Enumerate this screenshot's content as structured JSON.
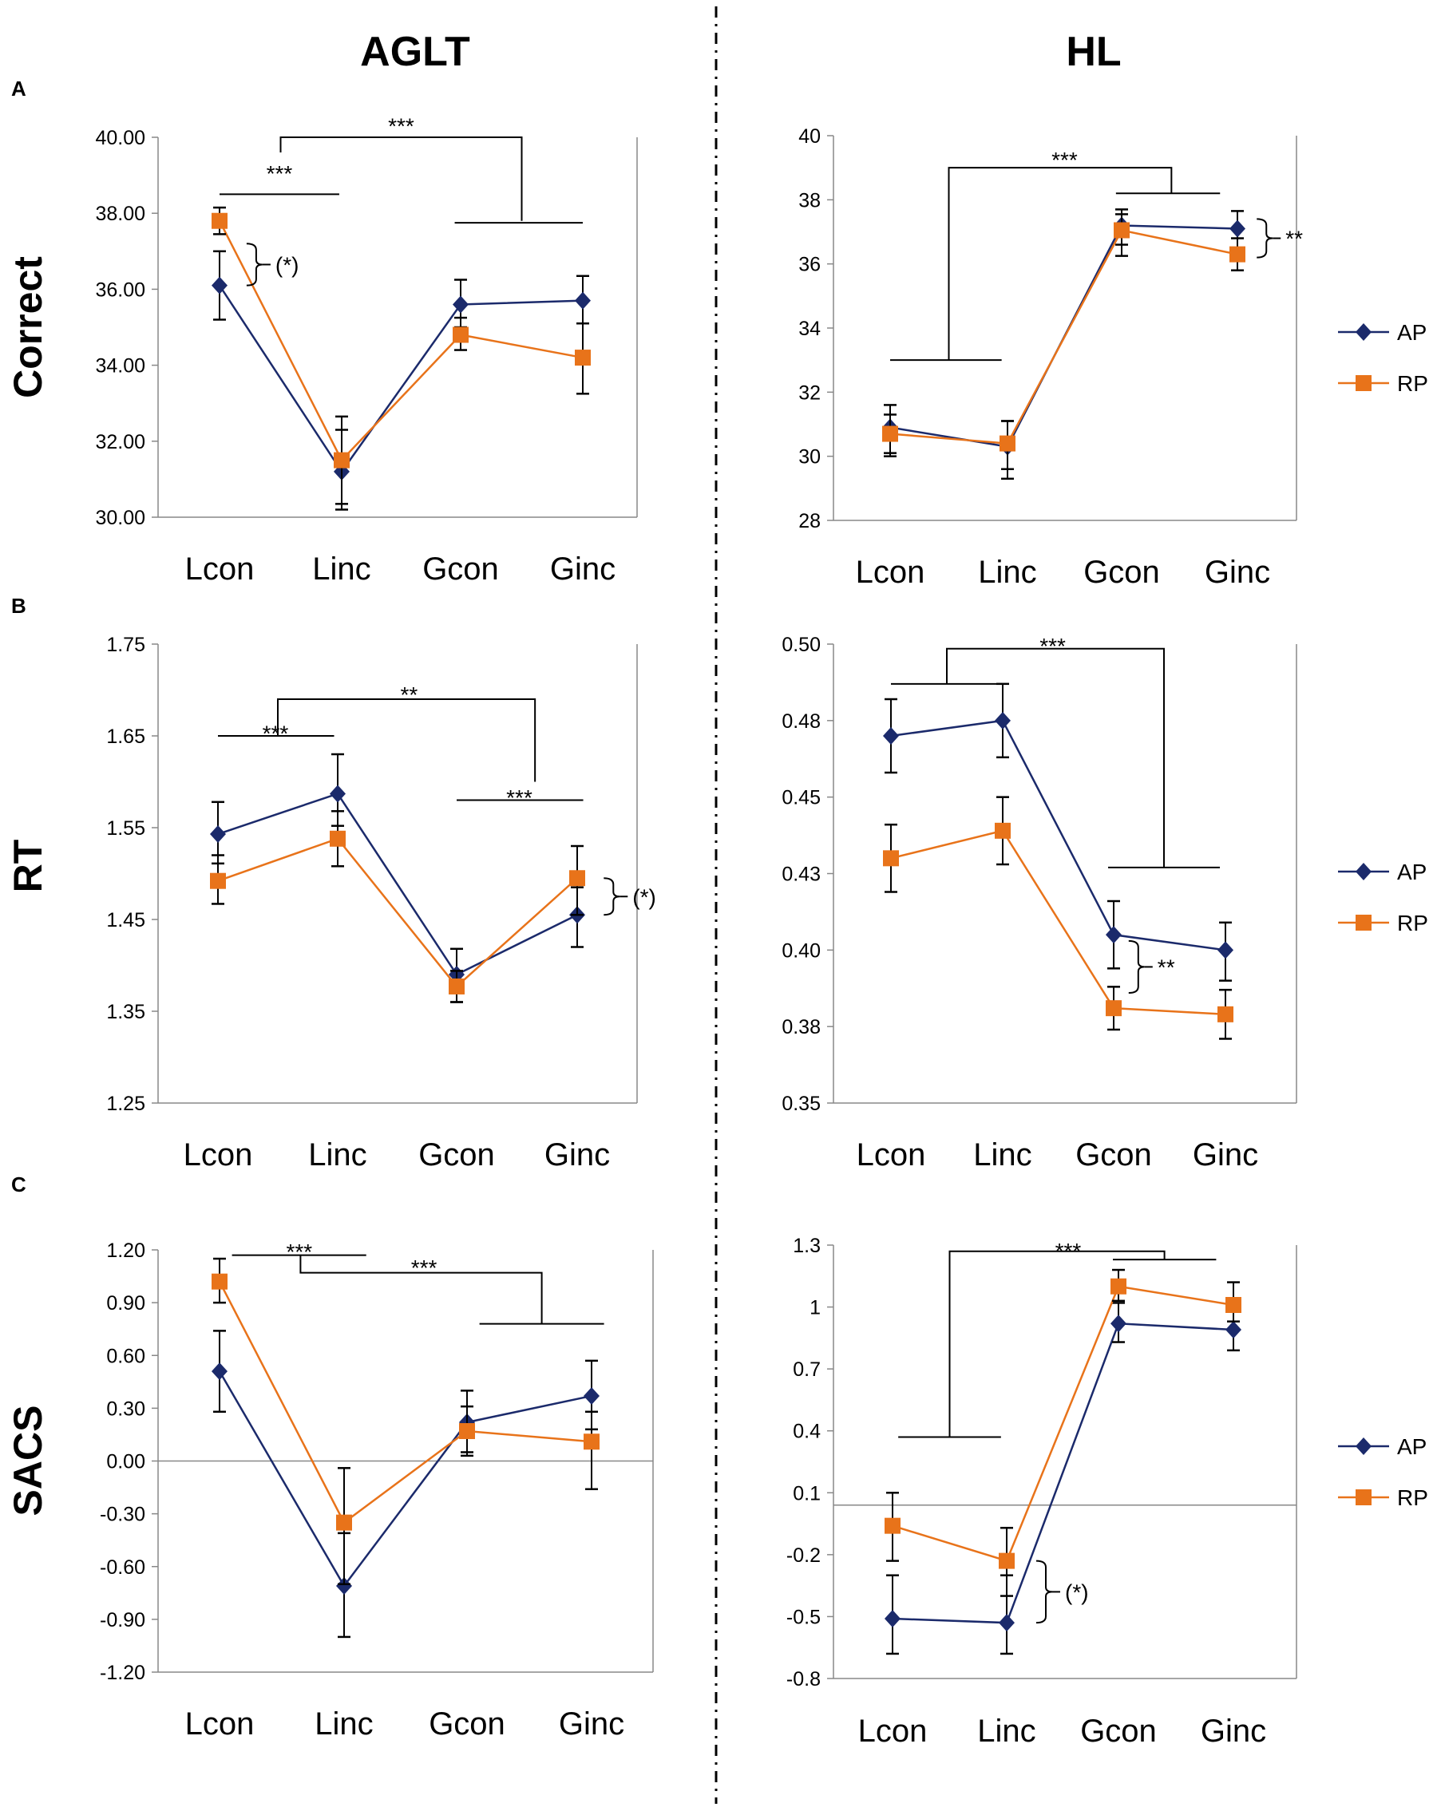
{
  "figure": {
    "column_titles": [
      "AGLT",
      "HL"
    ],
    "row_labels": [
      "Correct",
      "RT",
      "SACS"
    ],
    "panel_letters": [
      "A",
      "B",
      "C"
    ]
  },
  "colors": {
    "ap": "#1b2a6b",
    "rp": "#e8731a",
    "axis": "#888888",
    "annot": "#000000",
    "divider": "#000000"
  },
  "legend": {
    "entries": [
      "AP",
      "RP"
    ]
  },
  "chart_data": [
    {
      "id": "aglt-correct",
      "type": "line",
      "title": "AGLT",
      "ylabel": "Correct",
      "categories": [
        "Lcon",
        "Linc",
        "Gcon",
        "Ginc"
      ],
      "ylim": [
        30,
        40
      ],
      "yticks": [
        30,
        32,
        34,
        36,
        38,
        40
      ],
      "ytick_labels": [
        "30.00",
        "32.00",
        "34.00",
        "36.00",
        "38.00",
        "40.00"
      ],
      "zero_line": false,
      "legend": false,
      "series": [
        {
          "name": "AP",
          "values": [
            36.1,
            31.2,
            35.6,
            35.7
          ],
          "err_hi": [
            0.9,
            1.45,
            0.65,
            0.65
          ],
          "err_lo": [
            0.9,
            1.0,
            0.6,
            0.6
          ]
        },
        {
          "name": "RP",
          "values": [
            37.8,
            31.5,
            34.8,
            34.2
          ],
          "err_hi": [
            0.35,
            0.8,
            0.45,
            0.9
          ],
          "err_lo": [
            0.35,
            1.15,
            0.4,
            0.95
          ]
        }
      ],
      "annotations": [
        {
          "kind": "hline",
          "x1": 0,
          "x2": 0.98,
          "y": 38.5
        },
        {
          "kind": "text",
          "text": "***",
          "x": 0.49,
          "y": 39.1
        },
        {
          "kind": "path",
          "pts": [
            [
              0.5,
              39.6
            ],
            [
              0.5,
              40.0
            ],
            [
              2.5,
              40.0
            ],
            [
              2.5,
              37.8
            ]
          ]
        },
        {
          "kind": "hline",
          "x1": 1.95,
          "x2": 3.0,
          "y": 37.75
        },
        {
          "kind": "text",
          "text": "***",
          "x": 1.5,
          "y": 40.35
        },
        {
          "kind": "brace",
          "x": 0.3,
          "y1": 36.1,
          "y2": 37.2,
          "label": "(*)"
        }
      ]
    },
    {
      "id": "hl-correct",
      "type": "line",
      "title": "HL",
      "ylabel": "Correct",
      "categories": [
        "Lcon",
        "Linc",
        "Gcon",
        "Ginc"
      ],
      "ylim": [
        28,
        40
      ],
      "yticks": [
        28,
        30,
        32,
        34,
        36,
        38,
        40
      ],
      "ytick_labels": [
        "28",
        "30",
        "32",
        "34",
        "36",
        "38",
        "40"
      ],
      "zero_line": false,
      "legend": true,
      "series": [
        {
          "name": "AP",
          "values": [
            30.9,
            30.3,
            37.2,
            37.1
          ],
          "err_hi": [
            0.7,
            0.8,
            0.5,
            0.55
          ],
          "err_lo": [
            0.9,
            1.0,
            0.6,
            0.6
          ]
        },
        {
          "name": "RP",
          "values": [
            30.7,
            30.4,
            37.05,
            36.3
          ],
          "err_hi": [
            0.6,
            0.7,
            0.5,
            0.5
          ],
          "err_lo": [
            0.6,
            0.8,
            0.8,
            0.5
          ]
        }
      ],
      "annotations": [
        {
          "kind": "hline",
          "x1": 0,
          "x2": 0.95,
          "y": 33.0
        },
        {
          "kind": "path",
          "pts": [
            [
              0.5,
              33.0
            ],
            [
              0.5,
              39.0
            ],
            [
              2.43,
              39.0
            ],
            [
              2.43,
              38.2
            ]
          ]
        },
        {
          "kind": "hline",
          "x1": 1.95,
          "x2": 2.85,
          "y": 38.2
        },
        {
          "kind": "text",
          "text": "***",
          "x": 1.5,
          "y": 39.3
        },
        {
          "kind": "brace",
          "x": 3.25,
          "y1": 36.2,
          "y2": 37.4,
          "label": "**"
        }
      ]
    },
    {
      "id": "aglt-rt",
      "type": "line",
      "title": "AGLT",
      "ylabel": "RT",
      "categories": [
        "Lcon",
        "Linc",
        "Gcon",
        "Ginc"
      ],
      "ylim": [
        1.25,
        1.75
      ],
      "yticks": [
        1.25,
        1.35,
        1.45,
        1.55,
        1.65,
        1.75
      ],
      "ytick_labels": [
        "1.25",
        "1.35",
        "1.45",
        "1.55",
        "1.65",
        "1.75"
      ],
      "zero_line": false,
      "legend": false,
      "series": [
        {
          "name": "AP",
          "values": [
            1.543,
            1.587,
            1.39,
            1.455
          ],
          "err_hi": [
            0.035,
            0.043,
            0.028,
            0.03
          ],
          "err_lo": [
            0.032,
            0.035,
            0.03,
            0.035
          ]
        },
        {
          "name": "RP",
          "values": [
            1.492,
            1.538,
            1.377,
            1.495
          ],
          "err_hi": [
            0.028,
            0.03,
            0.017,
            0.035
          ],
          "err_lo": [
            0.025,
            0.03,
            0.017,
            0.04
          ]
        }
      ],
      "annotations": [
        {
          "kind": "hline",
          "x1": 0,
          "x2": 0.97,
          "y": 1.65
        },
        {
          "kind": "text",
          "text": "***",
          "x": 0.48,
          "y": 1.655
        },
        {
          "kind": "path",
          "pts": [
            [
              0.5,
              1.65
            ],
            [
              0.5,
              1.69
            ],
            [
              2.65,
              1.69
            ],
            [
              2.65,
              1.6
            ]
          ]
        },
        {
          "kind": "text",
          "text": "**",
          "x": 1.6,
          "y": 1.697
        },
        {
          "kind": "hline",
          "x1": 2.0,
          "x2": 3.05,
          "y": 1.58
        },
        {
          "kind": "text",
          "text": "***",
          "x": 2.52,
          "y": 1.585
        },
        {
          "kind": "brace",
          "x": 3.3,
          "y1": 1.455,
          "y2": 1.495,
          "label": "(*)"
        }
      ]
    },
    {
      "id": "hl-rt",
      "type": "line",
      "title": "HL",
      "ylabel": "RT",
      "categories": [
        "Lcon",
        "Linc",
        "Gcon",
        "Ginc"
      ],
      "ylim": [
        0.35,
        0.5
      ],
      "yticks": [
        0.35,
        0.375,
        0.4,
        0.425,
        0.45,
        0.475,
        0.5
      ],
      "ytick_labels": [
        "0.35",
        "0.38",
        "0.40",
        "0.43",
        "0.45",
        "0.48",
        "0.50"
      ],
      "zero_line": false,
      "legend": true,
      "series": [
        {
          "name": "AP",
          "values": [
            0.47,
            0.475,
            0.405,
            0.4
          ],
          "err_hi": [
            0.012,
            0.012,
            0.011,
            0.009
          ],
          "err_lo": [
            0.012,
            0.012,
            0.011,
            0.01
          ]
        },
        {
          "name": "RP",
          "values": [
            0.43,
            0.439,
            0.381,
            0.379
          ],
          "err_hi": [
            0.011,
            0.011,
            0.007,
            0.008
          ],
          "err_lo": [
            0.011,
            0.011,
            0.007,
            0.008
          ]
        }
      ],
      "annotations": [
        {
          "kind": "hline",
          "x1": 0,
          "x2": 1.0,
          "y": 0.487
        },
        {
          "kind": "path",
          "pts": [
            [
              0.5,
              0.487
            ],
            [
              0.5,
              0.4985
            ],
            [
              2.45,
              0.4985
            ],
            [
              2.45,
              0.427
            ]
          ]
        },
        {
          "kind": "hline",
          "x1": 1.95,
          "x2": 2.95,
          "y": 0.427
        },
        {
          "kind": "text",
          "text": "***",
          "x": 1.45,
          "y": 0.5
        },
        {
          "kind": "brace",
          "x": 2.22,
          "y1": 0.386,
          "y2": 0.403,
          "label": "**"
        }
      ]
    },
    {
      "id": "aglt-sacs",
      "type": "line",
      "title": "AGLT",
      "ylabel": "SACS",
      "categories": [
        "Lcon",
        "Linc",
        "Gcon",
        "Ginc"
      ],
      "ylim": [
        -1.2,
        1.2
      ],
      "yticks": [
        -1.2,
        -0.9,
        -0.6,
        -0.3,
        0,
        0.3,
        0.6,
        0.9,
        1.2
      ],
      "ytick_labels": [
        "-1.20",
        "-0.90",
        "-0.60",
        "-0.30",
        "0.00",
        "0.30",
        "0.60",
        "0.90",
        "1.20"
      ],
      "zero_line": true,
      "legend": false,
      "series": [
        {
          "name": "AP",
          "values": [
            0.51,
            -0.71,
            0.22,
            0.37
          ],
          "err_hi": [
            0.23,
            0.3,
            0.18,
            0.2
          ],
          "err_lo": [
            0.23,
            0.29,
            0.17,
            0.19
          ]
        },
        {
          "name": "RP",
          "values": [
            1.02,
            -0.35,
            0.17,
            0.11
          ],
          "err_hi": [
            0.13,
            0.31,
            0.14,
            0.17
          ],
          "err_lo": [
            0.12,
            0.35,
            0.14,
            0.27
          ]
        }
      ],
      "annotations": [
        {
          "kind": "hline",
          "x1": 0.1,
          "x2": 1.18,
          "y": 1.17
        },
        {
          "kind": "text",
          "text": "***",
          "x": 0.64,
          "y": 1.2
        },
        {
          "kind": "path",
          "pts": [
            [
              0.65,
              1.17
            ],
            [
              0.65,
              1.07
            ],
            [
              2.6,
              1.07
            ],
            [
              2.6,
              0.78
            ]
          ]
        },
        {
          "kind": "text",
          "text": "***",
          "x": 1.65,
          "y": 1.11
        },
        {
          "kind": "hline",
          "x1": 2.1,
          "x2": 3.1,
          "y": 0.78
        }
      ]
    },
    {
      "id": "hl-sacs",
      "type": "line",
      "title": "HL",
      "ylabel": "SACS",
      "categories": [
        "Lcon",
        "Linc",
        "Gcon",
        "Ginc"
      ],
      "ylim": [
        -0.8,
        1.3
      ],
      "yticks": [
        -0.8,
        -0.5,
        -0.2,
        0.1,
        0.4,
        0.7,
        1.0,
        1.3
      ],
      "ytick_labels": [
        "-0.8",
        "-0.5",
        "-0.2",
        "0.1",
        "0.4",
        "0.7",
        "1",
        "1.3"
      ],
      "zero_line": true,
      "legend": true,
      "series": [
        {
          "name": "AP",
          "values": [
            -0.51,
            -0.53,
            0.92,
            0.89
          ],
          "err_hi": [
            0.21,
            0.23,
            0.1,
            0.1
          ],
          "err_lo": [
            0.17,
            0.15,
            0.09,
            0.1
          ]
        },
        {
          "name": "RP",
          "values": [
            -0.06,
            -0.23,
            1.1,
            1.01
          ],
          "err_hi": [
            0.16,
            0.16,
            0.08,
            0.11
          ],
          "err_lo": [
            0.17,
            0.17,
            0.07,
            0.08
          ]
        }
      ],
      "annotations": [
        {
          "kind": "hline",
          "x1": 0.05,
          "x2": 0.95,
          "y": 0.37
        },
        {
          "kind": "path",
          "pts": [
            [
              0.5,
              0.37
            ],
            [
              0.5,
              1.27
            ],
            [
              2.4,
              1.27
            ],
            [
              2.4,
              1.23
            ]
          ]
        },
        {
          "kind": "hline",
          "x1": 1.95,
          "x2": 2.85,
          "y": 1.23
        },
        {
          "kind": "text",
          "text": "***",
          "x": 1.55,
          "y": 1.28
        },
        {
          "kind": "brace",
          "x": 1.35,
          "y1": -0.23,
          "y2": -0.53,
          "label": "(*)"
        }
      ]
    }
  ]
}
